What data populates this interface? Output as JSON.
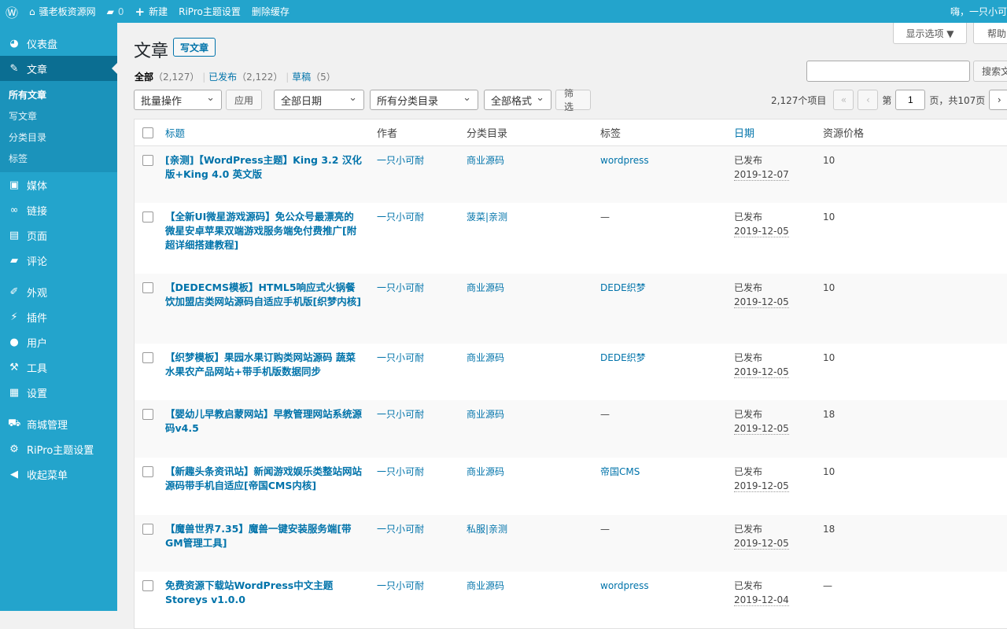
{
  "topbar": {
    "site": "骚老板资源网",
    "comments": "0",
    "new": "新建",
    "ripro": "RiPro主题设置",
    "cache": "删除缓存",
    "greeting": "嗨，一只小可"
  },
  "sidebar": {
    "items": [
      {
        "label": "仪表盘",
        "icon": "dashboard-icon",
        "glyph": "◕"
      },
      {
        "label": "文章",
        "icon": "pin-icon",
        "glyph": "✎",
        "active": true
      },
      {
        "label": "媒体",
        "icon": "media-icon",
        "glyph": "▣"
      },
      {
        "label": "链接",
        "icon": "link-icon",
        "glyph": "∞"
      },
      {
        "label": "页面",
        "icon": "page-icon",
        "glyph": "▤"
      },
      {
        "label": "评论",
        "icon": "comment-icon",
        "glyph": "▰"
      },
      {
        "label": "外观",
        "icon": "brush-icon",
        "glyph": "✐"
      },
      {
        "label": "插件",
        "icon": "plugin-icon",
        "glyph": "⚡"
      },
      {
        "label": "用户",
        "icon": "user-icon",
        "glyph": "●"
      },
      {
        "label": "工具",
        "icon": "wrench-icon",
        "glyph": "⚒"
      },
      {
        "label": "设置",
        "icon": "settings-icon",
        "glyph": "▦"
      },
      {
        "label": "商城管理",
        "icon": "cart-icon",
        "glyph": "⛟"
      },
      {
        "label": "RiPro主题设置",
        "icon": "gear-icon",
        "glyph": "⚙"
      },
      {
        "label": "收起菜单",
        "icon": "collapse-icon",
        "glyph": "◀"
      }
    ],
    "sub": [
      "所有文章",
      "写文章",
      "分类目录",
      "标签"
    ]
  },
  "screen_options": "显示选项 ▼",
  "help": "帮助",
  "page_title": "文章",
  "add_new": "写文章",
  "filters": {
    "all": "全部",
    "all_count": "（2,127）",
    "published": "已发布",
    "published_count": "（2,122）",
    "draft": "草稿",
    "draft_count": "（5）"
  },
  "search": {
    "value": "",
    "button": "搜索文"
  },
  "bulk": "批量操作",
  "apply": "应用",
  "dates": "全部日期",
  "cats": "所有分类目录",
  "formats": "全部格式",
  "filter": "筛选",
  "pagination": {
    "items": "2,127个项目",
    "first": "«",
    "prev": "‹",
    "page_prefix": "第",
    "page": "1",
    "page_suffix": "页，共107页",
    "next": "›"
  },
  "columns": [
    "标题",
    "作者",
    "分类目录",
    "标签",
    "日期",
    "资源价格"
  ],
  "rows": [
    {
      "title": "[亲测]【WordPress主题】King 3.2 汉化版+King 4.0 英文版",
      "author": "一只小可耐",
      "cat": "商业源码",
      "tag": "wordpress",
      "status": "已发布",
      "date": "2019-12-07",
      "price": "10"
    },
    {
      "title": "【全新UI微星游戏源码】免公众号最漂亮的微星安卓苹果双端游戏服务端免付费推广[附超详细搭建教程]",
      "author": "一只小可耐",
      "cat": "菠菜|亲测",
      "tag": "—",
      "status": "已发布",
      "date": "2019-12-05",
      "price": "10"
    },
    {
      "title": "【DEDECMS模板】HTML5响应式火锅餐饮加盟店类网站源码自适应手机版[织梦内核]",
      "author": "一只小可耐",
      "cat": "商业源码",
      "tag": "DEDE织梦",
      "status": "已发布",
      "date": "2019-12-05",
      "price": "10"
    },
    {
      "title": "【织梦模板】果园水果订购类网站源码 蔬菜水果农产品网站+带手机版数据同步",
      "author": "一只小可耐",
      "cat": "商业源码",
      "tag": "DEDE织梦",
      "status": "已发布",
      "date": "2019-12-05",
      "price": "10"
    },
    {
      "title": "【婴幼儿早教启蒙网站】早教管理网站系统源码v4.5",
      "author": "一只小可耐",
      "cat": "商业源码",
      "tag": "—",
      "status": "已发布",
      "date": "2019-12-05",
      "price": "18"
    },
    {
      "title": "【新趣头条资讯站】新闻游戏娱乐类整站网站源码带手机自适应[帝国CMS内核]",
      "author": "一只小可耐",
      "cat": "商业源码",
      "tag": "帝国CMS",
      "status": "已发布",
      "date": "2019-12-05",
      "price": "10"
    },
    {
      "title": "【魔兽世界7.35】魔兽一键安装服务端[带GM管理工具]",
      "author": "一只小可耐",
      "cat": "私服|亲测",
      "tag": "—",
      "status": "已发布",
      "date": "2019-12-05",
      "price": "18"
    },
    {
      "title": "免费资源下载站WordPress中文主题Storeys v1.0.0",
      "author": "一只小可耐",
      "cat": "商业源码",
      "tag": "wordpress",
      "status": "已发布",
      "date": "2019-12-04",
      "price": "—"
    }
  ]
}
